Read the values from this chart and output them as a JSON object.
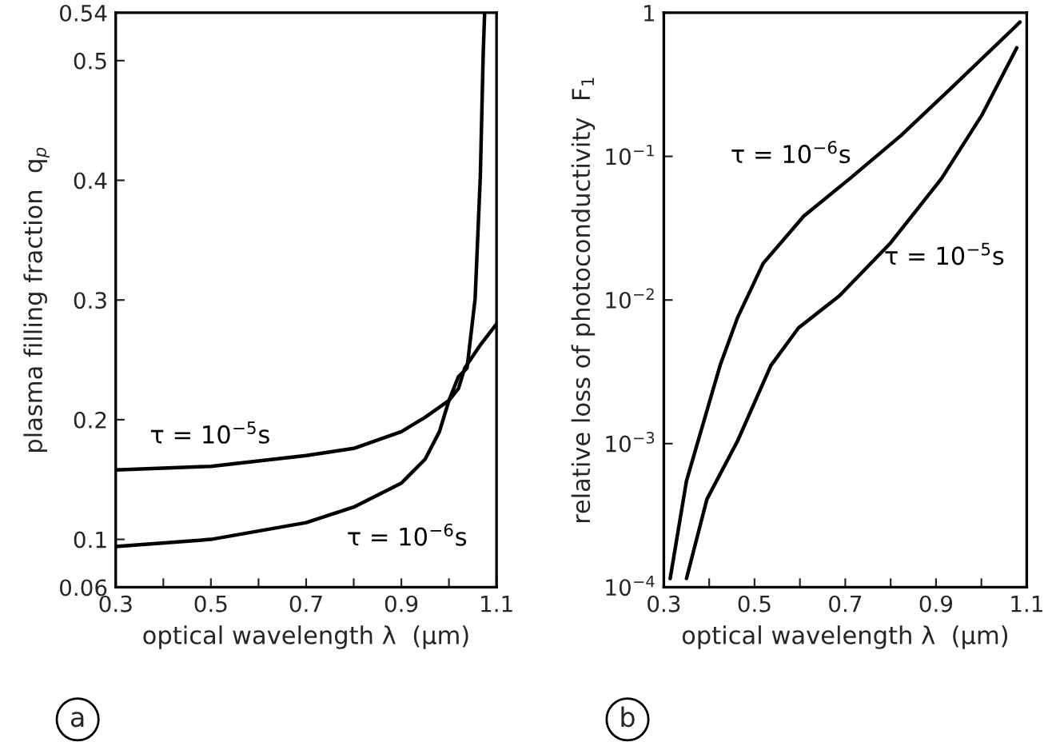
{
  "chart_data": [
    {
      "type": "line",
      "xlabel": "optical wavelength λ  (µm)",
      "ylabel": "plasma filling fraction  q$_{p}$",
      "series": [
        {
          "name": "τ = 10$^{−5}$s",
          "color": "#000000",
          "x": [
            0.3,
            0.5,
            0.7,
            0.8,
            0.9,
            0.95,
            1.0,
            1.02,
            1.033,
            1.067,
            1.1
          ],
          "values": [
            0.158,
            0.161,
            0.17,
            0.176,
            0.19,
            0.202,
            0.216,
            0.226,
            0.243,
            0.263,
            0.28
          ]
        },
        {
          "name": "τ = 10$^{−6}$s",
          "color": "#000000",
          "x": [
            0.3,
            0.5,
            0.7,
            0.8,
            0.9,
            0.95,
            0.98,
            1.0,
            1.02,
            1.038,
            1.055,
            1.066,
            1.072,
            1.075
          ],
          "values": [
            0.094,
            0.1,
            0.114,
            0.127,
            0.147,
            0.167,
            0.19,
            0.216,
            0.236,
            0.243,
            0.301,
            0.404,
            0.506,
            0.54
          ]
        }
      ],
      "xlim": [
        0.3,
        1.1
      ],
      "ylim": [
        0.06,
        0.54
      ],
      "xticks": [
        0.3,
        {
          "value": 0.4,
          "label": null
        },
        0.5,
        {
          "value": 0.6,
          "label": null
        },
        0.7,
        {
          "value": 0.8,
          "label": null
        },
        0.9,
        {
          "value": 1.0,
          "label": null
        },
        1.1
      ],
      "yticks": [
        0.06,
        0.1,
        0.2,
        0.3,
        0.4,
        0.5,
        0.54
      ],
      "grid": false,
      "legend": false,
      "annotations": [
        "a"
      ]
    },
    {
      "type": "line",
      "xlabel": "optical wavelength λ  (µm)",
      "ylabel": "relative loss of photoconductivity  F$_{1}$",
      "log": "y",
      "series": [
        {
          "name": "τ = 10$^{−6}$s",
          "color": "#000000",
          "x": [
            0.314,
            0.35,
            0.424,
            0.463,
            0.519,
            0.609,
            0.71,
            0.822,
            0.934,
            1.085
          ],
          "values": [
            0.000115,
            0.00055,
            0.0035,
            0.0076,
            0.018,
            0.0385,
            0.07,
            0.139,
            0.3,
            0.86
          ]
        },
        {
          "name": "τ = 10$^{−5}$s",
          "color": "#000000",
          "x": [
            0.35,
            0.395,
            0.463,
            0.536,
            0.597,
            0.687,
            0.8,
            0.912,
            1.002,
            1.078
          ],
          "values": [
            0.000115,
            0.00041,
            0.00105,
            0.0035,
            0.0064,
            0.0107,
            0.025,
            0.07,
            0.196,
            0.57
          ]
        }
      ],
      "xlim": [
        0.3,
        1.1
      ],
      "ylim": [
        0.0001,
        1
      ],
      "xticks": [
        0.3,
        {
          "value": 0.4,
          "label": null
        },
        0.5,
        {
          "value": 0.6,
          "label": null
        },
        0.7,
        {
          "value": 0.8,
          "label": null
        },
        0.9,
        {
          "value": 1.0,
          "label": null
        },
        1.1
      ],
      "yticks": [
        {
          "value": 0.0001,
          "label": "10$^{−4}$"
        },
        {
          "value": 0.001,
          "label": "10$^{−3}$"
        },
        {
          "value": 0.01,
          "label": "10$^{−2}$"
        },
        {
          "value": 0.1,
          "label": "10$^{−1}$"
        },
        1
      ],
      "grid": false,
      "legend": false,
      "annotations": [
        "b"
      ]
    }
  ]
}
